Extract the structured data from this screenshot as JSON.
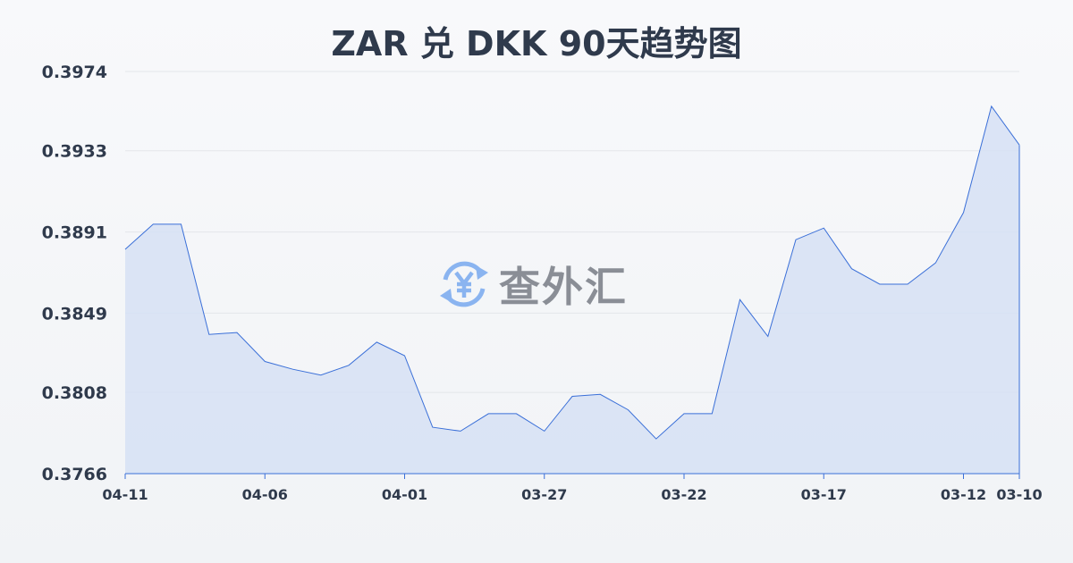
{
  "chart_data": {
    "type": "area",
    "title": "ZAR 兑 DKK 90天趋势图",
    "xlabel": "",
    "ylabel": "",
    "ylim": [
      0.3766,
      0.3974
    ],
    "yticks": [
      "0.3974",
      "0.3933",
      "0.3891",
      "0.3849",
      "0.3808",
      "0.3766"
    ],
    "xticks": [
      "04-11",
      "04-06",
      "04-01",
      "03-27",
      "03-22",
      "03-17",
      "03-12",
      "03-10"
    ],
    "grid": true,
    "line_color": "#3a6fd8",
    "fill_color": "#d6e0f5",
    "x": [
      "04-11",
      "04-10",
      "04-09",
      "04-08",
      "04-07",
      "04-06",
      "04-05",
      "04-04",
      "04-03",
      "04-02",
      "04-01",
      "03-31",
      "03-30",
      "03-29",
      "03-28",
      "03-27",
      "03-26",
      "03-25",
      "03-24",
      "03-23",
      "03-22",
      "03-21",
      "03-20",
      "03-19",
      "03-18",
      "03-17",
      "03-16",
      "03-15",
      "03-14",
      "03-13",
      "03-12",
      "03-11",
      "03-10"
    ],
    "values": [
      0.3882,
      0.3895,
      0.3895,
      0.3838,
      0.3839,
      0.3824,
      0.382,
      0.3817,
      0.3822,
      0.3834,
      0.3827,
      0.379,
      0.3788,
      0.3797,
      0.3797,
      0.3788,
      0.3806,
      0.3807,
      0.3799,
      0.3784,
      0.3797,
      0.3797,
      0.3856,
      0.3837,
      0.3887,
      0.3893,
      0.3872,
      0.3864,
      0.3864,
      0.3875,
      0.3901,
      0.3956,
      0.3936
    ]
  },
  "watermark": {
    "text": "查外汇",
    "icon": "yen-exchange-icon",
    "icon_color": "#8ab4f0"
  }
}
